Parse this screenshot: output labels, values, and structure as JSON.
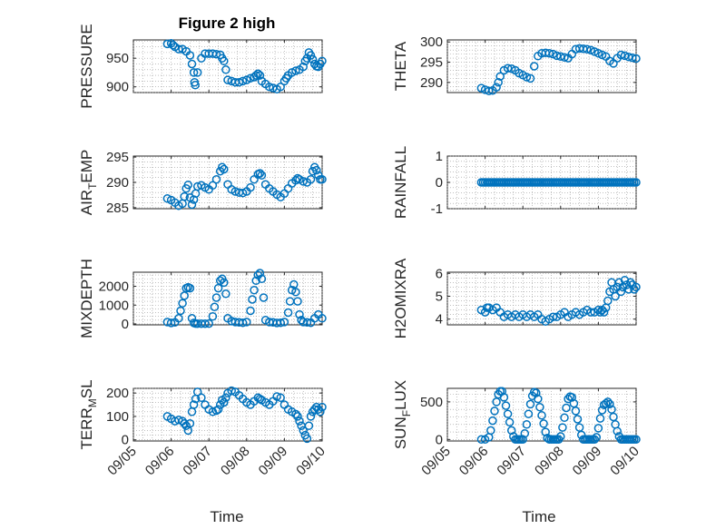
{
  "figure": {
    "title": "Figure 2 high",
    "marker_color": "#0072bd",
    "x_ticks": [
      "09/05",
      "09/06",
      "09/07",
      "09/08",
      "09/09",
      "09/10"
    ],
    "x_range_days": [
      5,
      10
    ],
    "x_label": "Time"
  },
  "chart_data": [
    {
      "type": "scatter",
      "id": "pressure",
      "ylabel": "PRESSURE",
      "ylim": [
        890,
        982
      ],
      "yticks": [
        900,
        950
      ],
      "yticklabels": [
        "900",
        "950"
      ],
      "x": [
        5.9,
        6.0,
        6.05,
        6.1,
        6.2,
        6.3,
        6.4,
        6.5,
        6.55,
        6.6,
        6.62,
        6.64,
        6.7,
        6.8,
        6.9,
        7.0,
        7.1,
        7.2,
        7.3,
        7.35,
        7.4,
        7.45,
        7.5,
        7.6,
        7.7,
        7.8,
        7.9,
        8.0,
        8.1,
        8.2,
        8.25,
        8.3,
        8.35,
        8.4,
        8.5,
        8.6,
        8.7,
        8.8,
        8.9,
        9.0,
        9.05,
        9.1,
        9.2,
        9.3,
        9.4,
        9.5,
        9.55,
        9.6,
        9.65,
        9.7,
        9.75,
        9.8,
        9.85,
        9.9,
        9.95,
        10.0
      ],
      "y": [
        975,
        976,
        973,
        970,
        966,
        966,
        962,
        955,
        940,
        925,
        908,
        903,
        925,
        950,
        958,
        958,
        958,
        957,
        956,
        950,
        945,
        930,
        912,
        910,
        908,
        908,
        910,
        912,
        915,
        917,
        920,
        923,
        920,
        910,
        905,
        900,
        898,
        896,
        900,
        910,
        915,
        920,
        925,
        928,
        930,
        935,
        945,
        950,
        960,
        955,
        948,
        940,
        936,
        935,
        940,
        945
      ]
    },
    {
      "type": "scatter",
      "id": "theta",
      "ylabel": "THETA",
      "ylim": [
        287.5,
        300.5
      ],
      "yticks": [
        290,
        295,
        300
      ],
      "yticklabels": [
        "290",
        "295",
        "300"
      ],
      "x": [
        5.9,
        6.0,
        6.1,
        6.2,
        6.3,
        6.35,
        6.4,
        6.5,
        6.6,
        6.7,
        6.8,
        6.9,
        7.0,
        7.1,
        7.2,
        7.3,
        7.4,
        7.5,
        7.6,
        7.7,
        7.8,
        7.9,
        8.0,
        8.1,
        8.2,
        8.3,
        8.4,
        8.5,
        8.6,
        8.7,
        8.8,
        8.9,
        9.0,
        9.1,
        9.2,
        9.3,
        9.4,
        9.5,
        9.6,
        9.7,
        9.8,
        9.9,
        10.0
      ],
      "y": [
        288.6,
        288.2,
        287.9,
        288.0,
        288.8,
        290.0,
        291.5,
        293.0,
        293.5,
        293.4,
        293.0,
        292.3,
        291.8,
        291.3,
        291.0,
        294.0,
        296.5,
        297.2,
        297.3,
        297.2,
        297.0,
        296.6,
        296.4,
        296.2,
        296.0,
        297.0,
        298.2,
        298.4,
        298.3,
        298.2,
        298.0,
        297.6,
        297.2,
        296.8,
        296.4,
        295.3,
        294.7,
        296.0,
        296.8,
        296.6,
        296.3,
        296.1,
        295.9
      ]
    },
    {
      "type": "scatter",
      "id": "air_temp",
      "ylabel": "AIR",
      "ylabel_sub": "T",
      "ylabel_tail": "EMP",
      "ylim": [
        284.8,
        295.2
      ],
      "yticks": [
        285,
        290,
        295
      ],
      "yticklabels": [
        "285",
        "290",
        "295"
      ],
      "x": [
        5.9,
        6.0,
        6.1,
        6.2,
        6.3,
        6.35,
        6.4,
        6.45,
        6.5,
        6.55,
        6.6,
        6.65,
        6.7,
        6.8,
        6.9,
        7.0,
        7.1,
        7.2,
        7.3,
        7.35,
        7.4,
        7.5,
        7.6,
        7.7,
        7.8,
        7.9,
        8.0,
        8.1,
        8.2,
        8.3,
        8.35,
        8.4,
        8.5,
        8.6,
        8.7,
        8.8,
        8.9,
        9.0,
        9.1,
        9.2,
        9.3,
        9.35,
        9.4,
        9.5,
        9.6,
        9.7,
        9.75,
        9.8,
        9.85,
        9.9,
        9.95,
        10.0
      ],
      "y": [
        286.8,
        286.5,
        286.0,
        285.4,
        285.8,
        287.2,
        288.8,
        289.5,
        287.0,
        285.6,
        286.6,
        287.8,
        289.2,
        289.4,
        289.0,
        288.6,
        289.4,
        290.6,
        292.2,
        293.0,
        292.6,
        289.6,
        288.6,
        288.2,
        288.0,
        287.9,
        288.2,
        289.0,
        290.6,
        291.6,
        291.8,
        291.4,
        289.6,
        288.8,
        288.2,
        287.6,
        287.1,
        287.8,
        288.8,
        289.8,
        290.4,
        290.8,
        290.6,
        290.2,
        290.0,
        290.6,
        292.2,
        293.0,
        292.4,
        291.4,
        290.6,
        290.6
      ]
    },
    {
      "type": "scatter",
      "id": "rainfall",
      "ylabel": "RAINFALL",
      "ylim": [
        -1,
        1
      ],
      "yticks": [
        -1,
        0,
        1
      ],
      "yticklabels": [
        "-1",
        "0",
        "1"
      ],
      "x": [
        5.9,
        5.95,
        6.0,
        6.05,
        6.1,
        6.15,
        6.2,
        6.25,
        6.3,
        6.35,
        6.4,
        6.45,
        6.5,
        6.55,
        6.6,
        6.65,
        6.7,
        6.75,
        6.8,
        6.85,
        6.9,
        6.95,
        7.0,
        7.05,
        7.1,
        7.15,
        7.2,
        7.25,
        7.3,
        7.35,
        7.4,
        7.45,
        7.5,
        7.55,
        7.6,
        7.65,
        7.7,
        7.75,
        7.8,
        7.85,
        7.9,
        7.95,
        8.0,
        8.05,
        8.1,
        8.15,
        8.2,
        8.25,
        8.3,
        8.35,
        8.4,
        8.45,
        8.5,
        8.55,
        8.6,
        8.65,
        8.7,
        8.75,
        8.8,
        8.85,
        8.9,
        8.95,
        9.0,
        9.05,
        9.1,
        9.15,
        9.2,
        9.25,
        9.3,
        9.35,
        9.4,
        9.45,
        9.5,
        9.55,
        9.6,
        9.65,
        9.7,
        9.75,
        9.8,
        9.85,
        9.9,
        9.95,
        10.0
      ],
      "y": [
        0,
        0,
        0,
        0,
        0,
        0,
        0,
        0,
        0,
        0,
        0,
        0,
        0,
        0,
        0,
        0,
        0,
        0,
        0,
        0,
        0,
        0,
        0,
        0,
        0,
        0,
        0,
        0,
        0,
        0,
        0,
        0,
        0,
        0,
        0,
        0,
        0,
        0,
        0,
        0,
        0,
        0,
        0,
        0,
        0,
        0,
        0,
        0,
        0,
        0,
        0,
        0,
        0,
        0,
        0,
        0,
        0,
        0,
        0,
        0,
        0,
        0,
        0,
        0,
        0,
        0,
        0,
        0,
        0,
        0,
        0,
        0,
        0,
        0,
        0,
        0,
        0,
        0,
        0,
        0,
        0,
        0,
        0
      ]
    },
    {
      "type": "scatter",
      "id": "mixdepth",
      "ylabel": "MIXDEPTH",
      "ylim": [
        -50,
        2750
      ],
      "yticks": [
        0,
        1000,
        2000
      ],
      "yticklabels": [
        "0",
        "1000",
        "2000"
      ],
      "x": [
        5.9,
        6.0,
        6.1,
        6.2,
        6.25,
        6.3,
        6.35,
        6.4,
        6.45,
        6.5,
        6.55,
        6.6,
        6.65,
        6.7,
        6.8,
        6.9,
        7.0,
        7.1,
        7.15,
        7.2,
        7.25,
        7.3,
        7.35,
        7.4,
        7.45,
        7.5,
        7.6,
        7.7,
        7.8,
        7.9,
        8.0,
        8.1,
        8.15,
        8.2,
        8.25,
        8.3,
        8.35,
        8.4,
        8.45,
        8.5,
        8.6,
        8.7,
        8.8,
        8.9,
        9.0,
        9.1,
        9.15,
        9.2,
        9.25,
        9.3,
        9.35,
        9.4,
        9.45,
        9.5,
        9.6,
        9.7,
        9.8,
        9.9,
        10.0
      ],
      "y": [
        100,
        50,
        80,
        300,
        700,
        1100,
        1500,
        1900,
        1950,
        1900,
        300,
        50,
        20,
        10,
        10,
        10,
        20,
        400,
        900,
        1400,
        1900,
        2300,
        2400,
        2200,
        1600,
        300,
        150,
        100,
        80,
        60,
        100,
        700,
        1300,
        1800,
        2300,
        2600,
        2700,
        2400,
        1400,
        200,
        100,
        80,
        50,
        60,
        100,
        600,
        1200,
        1800,
        2100,
        1700,
        1200,
        500,
        200,
        100,
        80,
        60,
        300,
        500,
        300
      ]
    },
    {
      "type": "scatter",
      "id": "h2omixra",
      "ylabel": "H2OMIXRA",
      "ylim": [
        3.75,
        6.05
      ],
      "yticks": [
        4,
        5,
        6
      ],
      "yticklabels": [
        "4",
        "5",
        "6"
      ],
      "x": [
        5.9,
        6.0,
        6.05,
        6.1,
        6.2,
        6.3,
        6.4,
        6.5,
        6.6,
        6.7,
        6.8,
        6.9,
        7.0,
        7.1,
        7.2,
        7.3,
        7.4,
        7.5,
        7.6,
        7.7,
        7.8,
        7.9,
        8.0,
        8.1,
        8.2,
        8.3,
        8.4,
        8.5,
        8.6,
        8.7,
        8.8,
        8.9,
        9.0,
        9.05,
        9.1,
        9.15,
        9.2,
        9.25,
        9.3,
        9.35,
        9.4,
        9.45,
        9.5,
        9.55,
        9.6,
        9.65,
        9.7,
        9.75,
        9.8,
        9.85,
        9.9,
        9.95,
        10.0
      ],
      "y": [
        4.4,
        4.3,
        4.5,
        4.5,
        4.4,
        4.5,
        4.3,
        4.1,
        4.2,
        4.1,
        4.2,
        4.1,
        4.2,
        4.1,
        4.2,
        4.1,
        4.2,
        4.0,
        3.9,
        4.0,
        4.1,
        4.1,
        4.2,
        4.3,
        4.1,
        4.2,
        4.3,
        4.2,
        4.3,
        4.4,
        4.3,
        4.3,
        4.4,
        4.3,
        4.4,
        4.3,
        4.5,
        4.8,
        5.2,
        5.6,
        5.3,
        5.0,
        5.4,
        5.6,
        5.2,
        5.4,
        5.7,
        5.5,
        5.3,
        5.6,
        5.5,
        5.3,
        5.4
      ]
    },
    {
      "type": "scatter",
      "id": "terr_msl",
      "ylabel": "TERR",
      "ylabel_sub": "M",
      "ylabel_tail": "SL",
      "ylim": [
        -5,
        220
      ],
      "yticks": [
        0,
        100,
        200
      ],
      "yticklabels": [
        "0",
        "100",
        "200"
      ],
      "x": [
        5.9,
        6.0,
        6.1,
        6.2,
        6.3,
        6.35,
        6.4,
        6.45,
        6.5,
        6.55,
        6.6,
        6.65,
        6.7,
        6.8,
        6.9,
        7.0,
        7.1,
        7.2,
        7.25,
        7.3,
        7.35,
        7.4,
        7.45,
        7.5,
        7.6,
        7.7,
        7.8,
        7.9,
        8.0,
        8.1,
        8.2,
        8.3,
        8.35,
        8.4,
        8.5,
        8.6,
        8.7,
        8.8,
        8.9,
        9.0,
        9.1,
        9.2,
        9.3,
        9.35,
        9.4,
        9.45,
        9.5,
        9.55,
        9.6,
        9.65,
        9.7,
        9.75,
        9.8,
        9.85,
        9.9,
        9.95,
        10.0
      ],
      "y": [
        100,
        90,
        80,
        85,
        80,
        70,
        60,
        40,
        70,
        120,
        150,
        175,
        205,
        180,
        150,
        130,
        120,
        125,
        130,
        150,
        170,
        160,
        180,
        200,
        210,
        205,
        190,
        175,
        160,
        150,
        165,
        180,
        175,
        170,
        160,
        150,
        165,
        185,
        180,
        150,
        130,
        120,
        110,
        100,
        80,
        60,
        40,
        20,
        5,
        60,
        100,
        120,
        130,
        140,
        130,
        120,
        140
      ]
    },
    {
      "type": "scatter",
      "id": "sun_flux",
      "ylabel": "SUN",
      "ylabel_sub": "F",
      "ylabel_tail": "LUX",
      "ylim": [
        -20,
        680
      ],
      "yticks": [
        0,
        500
      ],
      "yticklabels": [
        "0",
        "500"
      ],
      "x": [
        5.9,
        6.0,
        6.1,
        6.15,
        6.2,
        6.25,
        6.3,
        6.35,
        6.4,
        6.45,
        6.5,
        6.55,
        6.6,
        6.65,
        6.7,
        6.75,
        6.8,
        6.85,
        6.9,
        6.95,
        7.0,
        7.05,
        7.1,
        7.15,
        7.2,
        7.25,
        7.3,
        7.35,
        7.4,
        7.45,
        7.5,
        7.55,
        7.6,
        7.65,
        7.7,
        7.75,
        7.8,
        7.85,
        7.9,
        7.95,
        8.0,
        8.05,
        8.1,
        8.15,
        8.2,
        8.25,
        8.3,
        8.35,
        8.4,
        8.45,
        8.5,
        8.55,
        8.6,
        8.65,
        8.7,
        8.75,
        8.8,
        8.85,
        8.9,
        8.95,
        9.0,
        9.05,
        9.1,
        9.15,
        9.2,
        9.25,
        9.3,
        9.35,
        9.4,
        9.45,
        9.5,
        9.55,
        9.6,
        9.65,
        9.7,
        9.75,
        9.8,
        9.85,
        9.9,
        9.95,
        10.0
      ],
      "y": [
        0,
        0,
        30,
        120,
        250,
        380,
        500,
        600,
        640,
        640,
        560,
        450,
        340,
        230,
        120,
        40,
        0,
        0,
        0,
        0,
        0,
        80,
        200,
        340,
        470,
        580,
        630,
        620,
        540,
        430,
        320,
        210,
        100,
        20,
        0,
        0,
        0,
        0,
        0,
        0,
        40,
        160,
        290,
        420,
        540,
        570,
        560,
        480,
        380,
        270,
        160,
        60,
        0,
        0,
        0,
        0,
        0,
        0,
        0,
        30,
        150,
        280,
        390,
        460,
        480,
        500,
        470,
        400,
        300,
        200,
        110,
        40,
        0,
        0,
        0,
        0,
        0,
        0,
        0,
        0,
        0
      ]
    }
  ]
}
